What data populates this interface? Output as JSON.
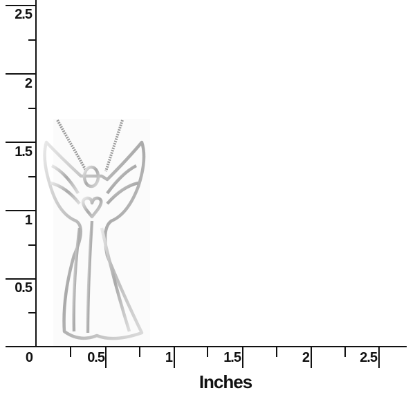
{
  "ruler": {
    "unit_label": "Inches",
    "x_ticks": [
      "0",
      "0.5",
      "1",
      "1.5",
      "2",
      "2.5"
    ],
    "y_ticks": [
      "0.5",
      "1",
      "1.5",
      "2",
      "2.5"
    ],
    "line_color": "#111111"
  },
  "photo": {
    "subject": "angel-pendant-on-chain",
    "metal_color": "#b8b8b8"
  }
}
